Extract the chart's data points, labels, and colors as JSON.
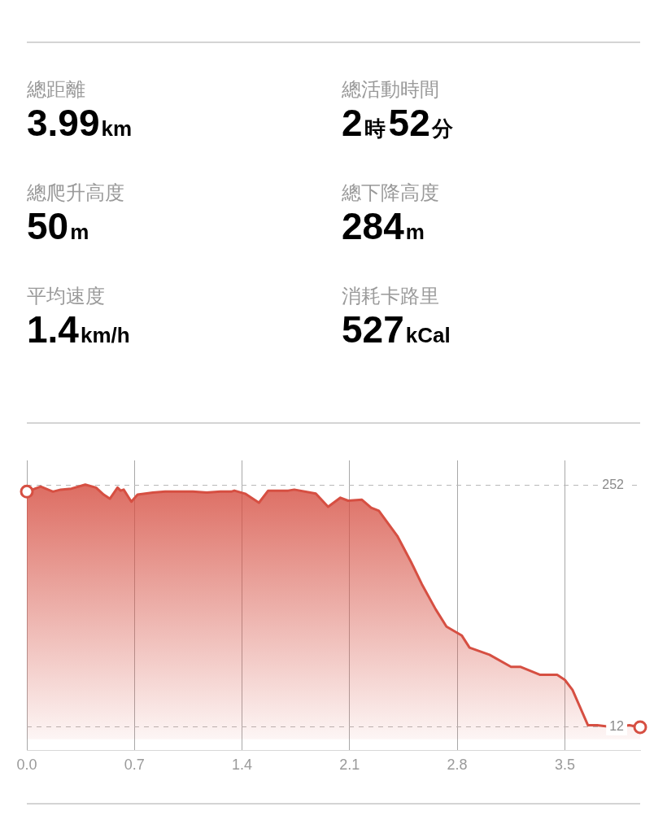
{
  "chart_data": [
    {
      "type": "other",
      "annotations": [
        "總距離",
        "3.99km",
        "總活動時間",
        "2時52分",
        "總爬升高度",
        "50m",
        "總下降高度",
        "284m",
        "平均速度",
        "1.4km/h",
        "消耗卡路里",
        "527kCal"
      ]
    },
    {
      "type": "area",
      "grid": true,
      "xlim": [
        0,
        3.99
      ],
      "xticks": [
        {
          "value": 0,
          "label": "0.0"
        },
        0.7,
        1.4,
        2.1,
        2.8,
        3.5
      ],
      "ylim": [
        -11,
        277
      ],
      "yticks": [
        12,
        252
      ],
      "series": [
        {
          "type": "area",
          "color": "#d64f42",
          "x": [
            0,
            0.09,
            0.17,
            0.22,
            0.29,
            0.38,
            0.45,
            0.5,
            0.54,
            0.59,
            0.61,
            0.63,
            0.68,
            0.72,
            0.82,
            0.9,
            1.08,
            1.17,
            1.26,
            1.33,
            1.35,
            1.42,
            1.51,
            1.57,
            1.7,
            1.74,
            1.88,
            1.96,
            2.04,
            2.09,
            2.18,
            2.24,
            2.29,
            2.41,
            2.5,
            2.57,
            2.66,
            2.73,
            2.83,
            2.88,
            3.01,
            3.15,
            3.21,
            3.34,
            3.45,
            3.5,
            3.55,
            3.65,
            3.71,
            3.82,
            3.92,
            3.99
          ],
          "values": [
            246,
            251,
            246,
            248,
            249,
            253,
            250,
            243,
            239,
            250,
            247,
            248,
            236,
            243,
            245,
            246,
            246,
            245,
            246,
            246,
            247,
            244,
            235,
            247,
            247,
            248,
            244,
            231,
            240,
            237,
            238,
            230,
            227,
            202,
            176,
            154,
            129,
            112,
            103,
            91,
            84,
            72,
            72,
            64,
            64,
            59,
            49,
            14,
            14,
            12,
            14,
            12
          ]
        },
        {
          "type": "scatter",
          "color": "#d64f42",
          "marker": "circle",
          "x": [
            0,
            3.99
          ],
          "values": [
            246,
            12
          ]
        }
      ]
    }
  ]
}
